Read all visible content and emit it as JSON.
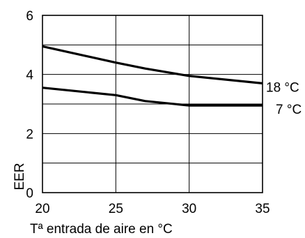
{
  "chart_data": {
    "type": "line",
    "xlabel": "Tª entrada de aire en °C",
    "ylabel": "EER",
    "xlim": [
      20,
      35
    ],
    "ylim": [
      0,
      6
    ],
    "x_ticks": [
      "20",
      "25",
      "30",
      "35"
    ],
    "y_ticks": [
      "0",
      "2",
      "4",
      "6"
    ],
    "grid": true,
    "series": [
      {
        "name": "18 °C",
        "x": [
          20,
          25,
          27,
          30,
          35
        ],
        "y": [
          4.95,
          4.4,
          4.2,
          3.95,
          3.7
        ]
      },
      {
        "name": "7 °C",
        "x": [
          20,
          25,
          27,
          30,
          35
        ],
        "y": [
          3.55,
          3.3,
          3.1,
          2.95,
          2.95
        ]
      }
    ]
  }
}
